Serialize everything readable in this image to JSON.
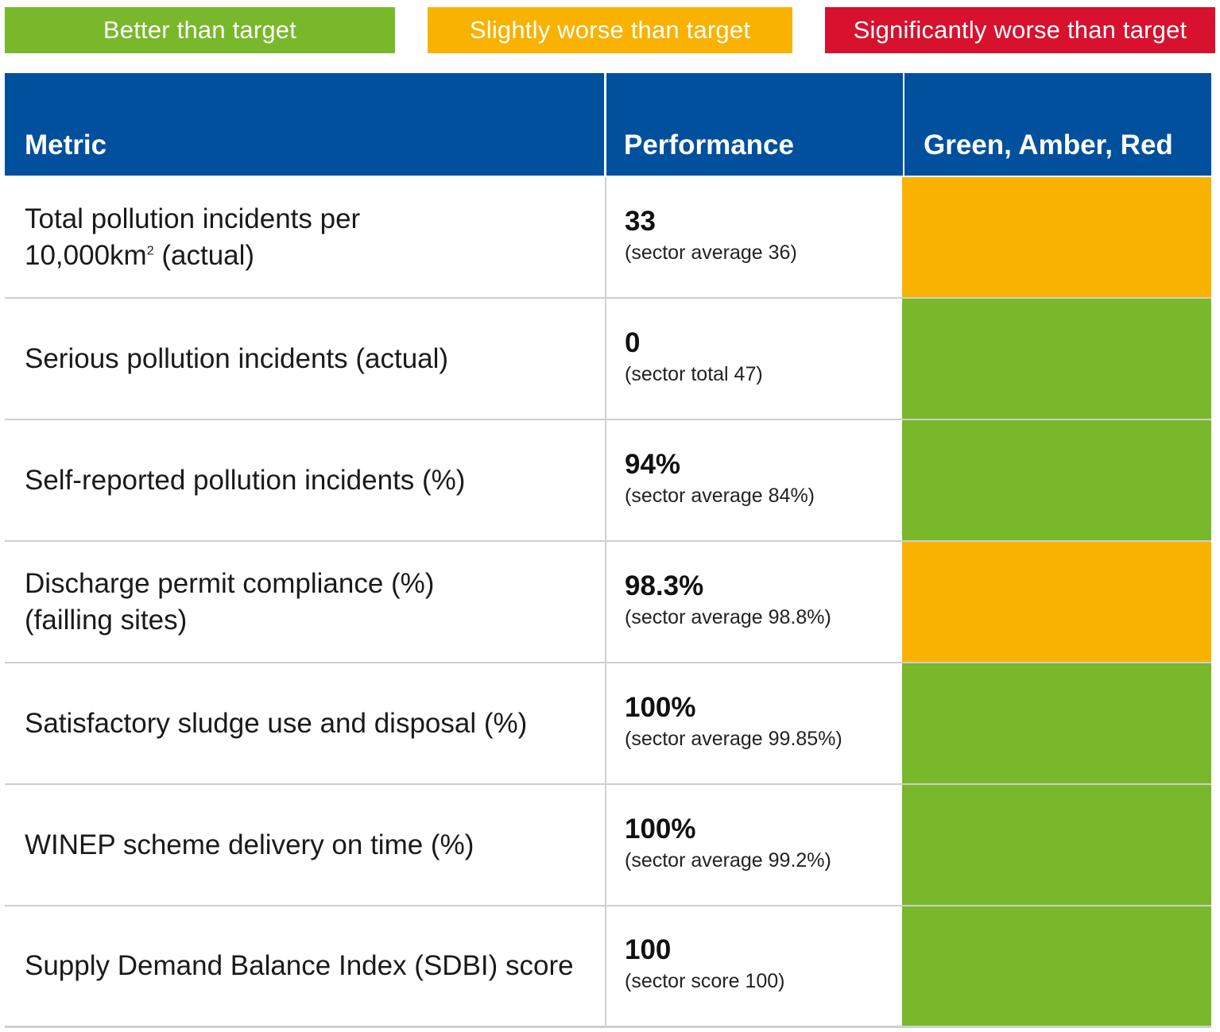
{
  "legend": {
    "green_label": "Better than target",
    "amber_label": "Slightly worse than target",
    "red_label": "Significantly worse than target"
  },
  "colors": {
    "green": "#78b82a",
    "amber": "#f9b200",
    "red": "#d7112e",
    "header_blue": "#00509d"
  },
  "table": {
    "headers": {
      "metric": "Metric",
      "performance": "Performance",
      "rag": "Green, Amber, Red"
    },
    "rows": [
      {
        "metric_line1": "Total pollution incidents per",
        "metric_line2_pre": "10,000km",
        "metric_line2_sup": "2",
        "metric_line2_post": " (actual)",
        "value": "33",
        "note": "(sector average 36)",
        "status": "amber"
      },
      {
        "metric": "Serious pollution incidents (actual)",
        "value": "0",
        "note": "(sector total 47)",
        "status": "green"
      },
      {
        "metric": "Self-reported pollution incidents (%)",
        "value": "94%",
        "note": "(sector average 84%)",
        "status": "green"
      },
      {
        "metric_line1": "Discharge permit compliance (%)",
        "metric_line2": "(failling sites)",
        "value": "98.3%",
        "note": "(sector average 98.8%)",
        "status": "amber"
      },
      {
        "metric": "Satisfactory sludge use and disposal (%)",
        "value": "100%",
        "note": "(sector average 99.85%)",
        "status": "green"
      },
      {
        "metric": "WINEP scheme delivery on time (%)",
        "value": "100%",
        "note": "(sector average 99.2%)",
        "status": "green"
      },
      {
        "metric": "Supply Demand Balance Index (SDBI) score",
        "value": "100",
        "note": "(sector score 100)",
        "status": "green"
      }
    ]
  }
}
